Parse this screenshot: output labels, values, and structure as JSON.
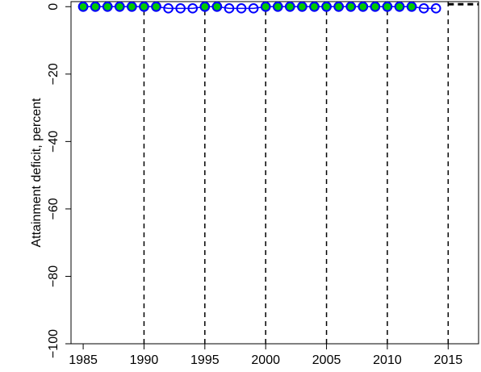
{
  "chart_data": {
    "type": "line",
    "title": "",
    "xlabel": "",
    "ylabel": "Attainment deficit, percent",
    "xlim": [
      1984,
      2017.5
    ],
    "ylim": [
      -100,
      1.5
    ],
    "x_ticks": [
      1985,
      1990,
      1995,
      2000,
      2005,
      2010,
      2015
    ],
    "y_ticks": [
      0,
      -20,
      -40,
      -60,
      -80,
      -100
    ],
    "vertical_reference_lines": [
      1990,
      1995,
      2000,
      2005,
      2010,
      2015
    ],
    "horizontal_reference_line": {
      "y": 0,
      "from_x": 2015
    },
    "grid": false,
    "series": [
      {
        "marker": "open-circle",
        "color": "#0000ff",
        "x": [
          1985,
          1986,
          1987,
          1988,
          1989,
          1990,
          1991,
          1992,
          1993,
          1994,
          1995,
          1996,
          1997,
          1998,
          1999,
          2000,
          2001,
          2002,
          2003,
          2004,
          2005,
          2006,
          2007,
          2008,
          2009,
          2010,
          2011,
          2012,
          2013,
          2014
        ],
        "y": [
          0,
          0,
          0,
          0,
          0,
          0,
          0,
          -0.5,
          -0.5,
          -0.5,
          0,
          0,
          -0.5,
          -0.5,
          -0.5,
          0,
          0,
          0,
          0,
          0,
          0,
          0,
          0,
          0,
          0,
          0,
          0,
          0,
          -0.5,
          -0.5
        ]
      },
      {
        "marker": "filled-circle",
        "color": "#00cc00",
        "x": [
          1985,
          1986,
          1987,
          1988,
          1989,
          1990,
          1991,
          1995,
          1996,
          2000,
          2001,
          2002,
          2003,
          2004,
          2005,
          2006,
          2007,
          2008,
          2009,
          2010,
          2011,
          2012
        ],
        "y": [
          0,
          0,
          0,
          0,
          0,
          0,
          0,
          0,
          0,
          0,
          0,
          0,
          0,
          0,
          0,
          0,
          0,
          0,
          0,
          0,
          0,
          0
        ]
      }
    ]
  }
}
